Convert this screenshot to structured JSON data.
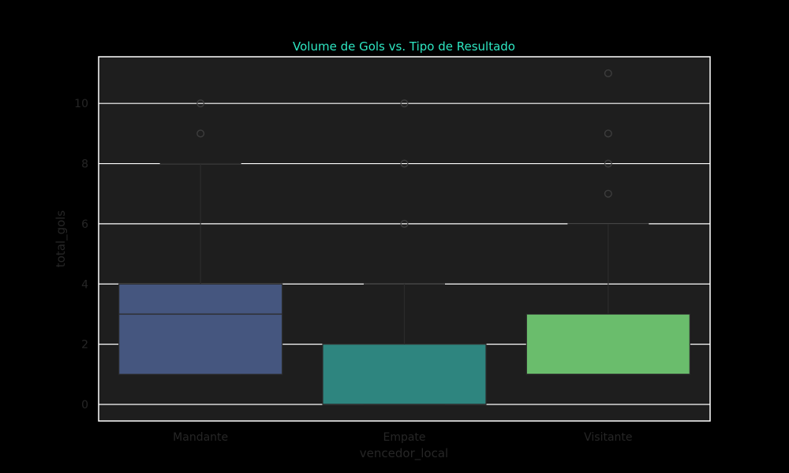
{
  "chart_data": {
    "type": "box",
    "title": "Volume de Gols vs. Tipo de Resultado",
    "xlabel": "vencedor_local",
    "ylabel": "total_gols",
    "ylim": [
      -0.55,
      11.55
    ],
    "yticks": [
      0,
      2,
      4,
      6,
      8,
      10
    ],
    "grid": true,
    "categories": [
      "Mandante",
      "Empate",
      "Visitante"
    ],
    "series": [
      {
        "category": "Mandante",
        "whisker_low": 1,
        "q1": 1,
        "median": 3,
        "q3": 4,
        "whisker_high": 8,
        "outliers": [
          9,
          10
        ]
      },
      {
        "category": "Empate",
        "whisker_low": 0,
        "q1": 0,
        "median": 0,
        "q3": 2,
        "whisker_high": 4,
        "outliers": [
          6,
          8,
          10
        ]
      },
      {
        "category": "Visitante",
        "whisker_low": 1,
        "q1": 1,
        "median": 1,
        "q3": 3,
        "whisker_high": 6,
        "outliers": [
          7,
          8,
          9,
          11
        ]
      }
    ],
    "colors": {
      "background": "#000000",
      "plot_background": "#1e1e1e",
      "grid": "#ffffff",
      "frame": "#ffffff",
      "title": "#2ee6c2",
      "tick_text": "#262626",
      "line": "#2b2b2b",
      "boxes": [
        "#45567f",
        "#2e857f",
        "#6abd6c"
      ]
    }
  }
}
